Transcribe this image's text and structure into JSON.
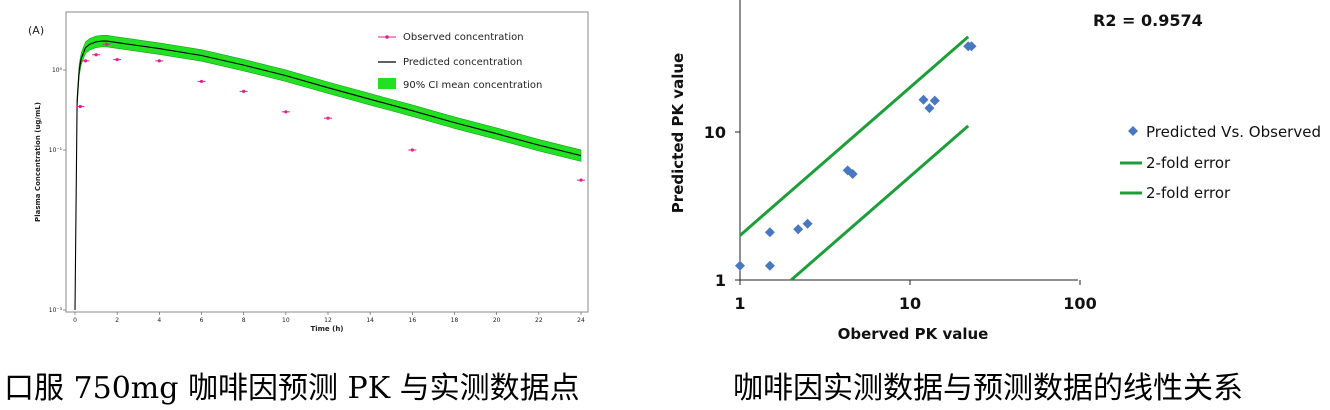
{
  "captions": {
    "left": "口服 750mg 咖啡因预测 PK 与实测数据点",
    "right": "咖啡因实测数据与预测数据的线性关系"
  },
  "colors": {
    "observed": "#e0208f",
    "predicted": "#000000",
    "ci_fill": "#22e022",
    "ci_edge": "#1aa01a",
    "scatter": "#4a78c0",
    "fold_line": "#1e9e3a"
  },
  "chart_data": [
    {
      "type": "line",
      "panel_label": "(A)",
      "xlabel": "Time (h)",
      "ylabel": "Plasma Concentration (ug/mL)",
      "x_ticks": [
        "0",
        "2",
        "4",
        "6",
        "8",
        "10",
        "12",
        "14",
        "16",
        "18",
        "20",
        "22",
        "24"
      ],
      "y_ticks": [
        "10⁻³",
        "10⁻¹",
        "10⁰"
      ],
      "xlim": [
        0,
        24
      ],
      "y_scale": "log",
      "legend_position": "top-right",
      "legend": [
        "Observed concentration",
        "Predicted concentration",
        "90% CI mean concentration"
      ],
      "observed": {
        "name": "Observed concentration",
        "x": [
          0.25,
          0.5,
          1,
          1.5,
          2,
          4,
          6,
          8,
          10,
          12,
          16,
          24
        ],
        "y": [
          0.35,
          1.3,
          1.55,
          2.1,
          1.35,
          1.3,
          0.72,
          0.54,
          0.3,
          0.25,
          0.1,
          0.042
        ]
      },
      "predicted": {
        "name": "Predicted concentration",
        "x": [
          0,
          0.1,
          0.2,
          0.3,
          0.5,
          0.7,
          1.0,
          1.3,
          1.5,
          2,
          4,
          6,
          8,
          10,
          12,
          14,
          16,
          18,
          20,
          22,
          24
        ],
        "y": [
          0.001,
          0.4,
          1.0,
          1.4,
          1.9,
          2.1,
          2.25,
          2.3,
          2.3,
          2.2,
          1.85,
          1.52,
          1.15,
          0.85,
          0.6,
          0.43,
          0.31,
          0.22,
          0.16,
          0.115,
          0.085
        ]
      },
      "ci_halfwidth_factor": 1.18
    },
    {
      "type": "scatter",
      "annotation": "R2 = 0.9574",
      "xlabel": "Oberved PK value",
      "ylabel": "Predicted PK value",
      "x_scale": "log",
      "y_scale": "log",
      "xlim": [
        1,
        100
      ],
      "ylim": [
        1,
        60
      ],
      "x_ticks": [
        "1",
        "10",
        "100"
      ],
      "y_ticks": [
        "1",
        "10"
      ],
      "legend_position": "right",
      "legend": [
        "Predicted Vs. Observed",
        "2-fold error",
        "2-fold error"
      ],
      "series": [
        {
          "name": "Predicted Vs. Observed",
          "x": [
            1.0,
            1.5,
            1.5,
            2.2,
            2.5,
            4.3,
            4.6,
            12,
            13,
            14,
            22,
            23
          ],
          "y": [
            1.25,
            1.25,
            2.1,
            2.2,
            2.4,
            5.5,
            5.2,
            16.5,
            14.5,
            16.3,
            38,
            38
          ]
        },
        {
          "name": "2-fold error",
          "x": [
            1,
            22
          ],
          "y": [
            2,
            44
          ]
        },
        {
          "name": "2-fold error",
          "x": [
            2,
            22
          ],
          "y": [
            1,
            11
          ]
        }
      ]
    }
  ]
}
